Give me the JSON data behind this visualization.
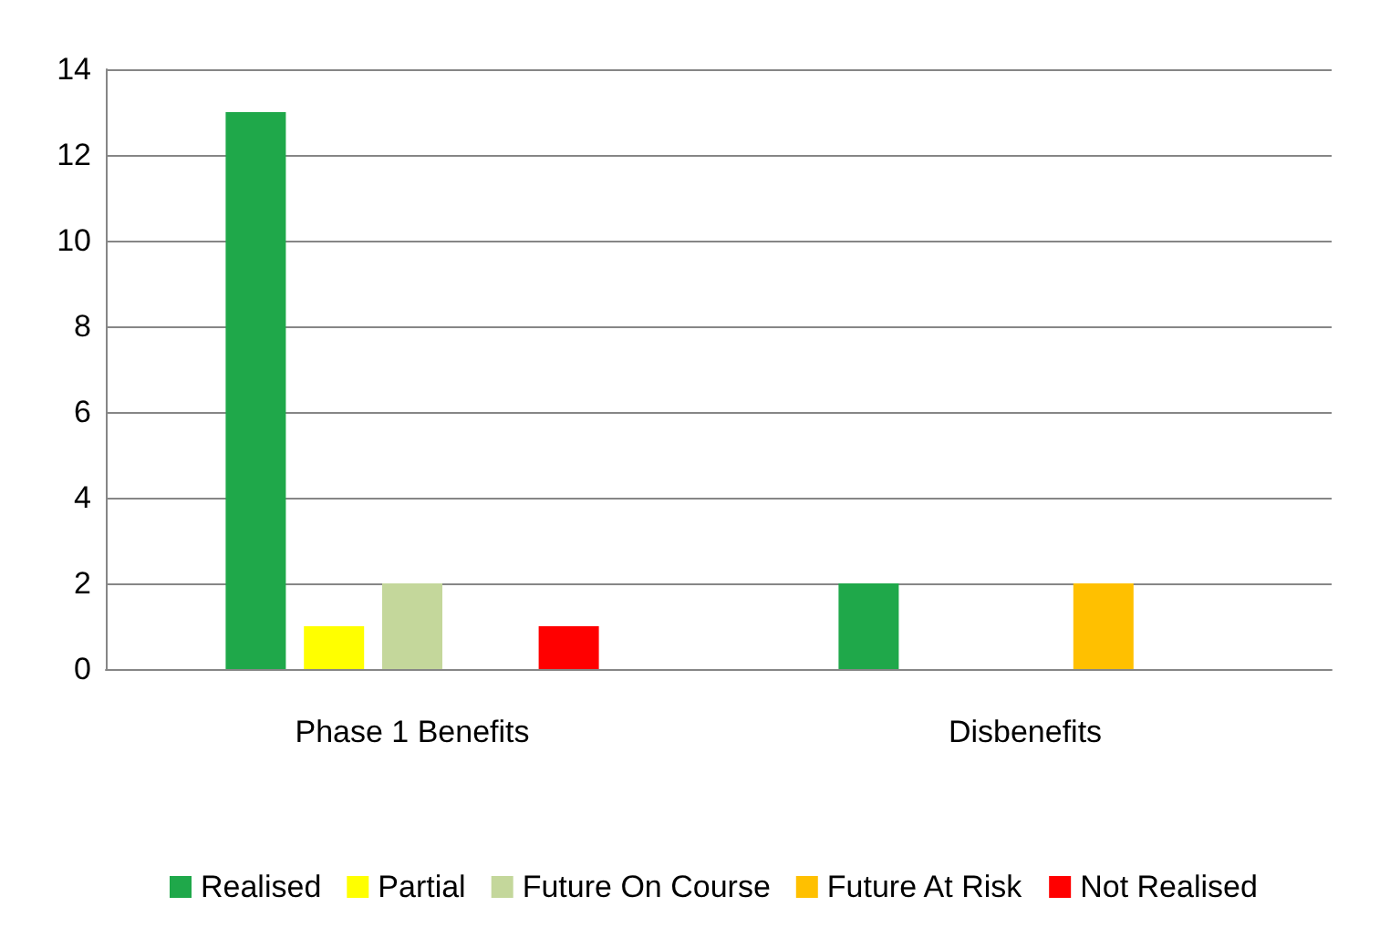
{
  "chart_data": {
    "type": "bar",
    "categories": [
      "Phase 1 Benefits",
      "Disbenefits"
    ],
    "series": [
      {
        "name": "Realised",
        "color": "#1fa84a",
        "values": [
          13,
          2
        ]
      },
      {
        "name": "Partial",
        "color": "#ffff00",
        "values": [
          1,
          0
        ]
      },
      {
        "name": "Future On Course",
        "color": "#c4d79b",
        "values": [
          2,
          0
        ]
      },
      {
        "name": "Future At Risk",
        "color": "#ffc000",
        "values": [
          0,
          2
        ]
      },
      {
        "name": "Not Realised",
        "color": "#ff0000",
        "values": [
          1,
          0
        ]
      }
    ],
    "ylim": [
      0,
      14
    ],
    "yticks": [
      0,
      2,
      4,
      6,
      8,
      10,
      12,
      14
    ],
    "grid": "y",
    "legend": "bottom"
  }
}
